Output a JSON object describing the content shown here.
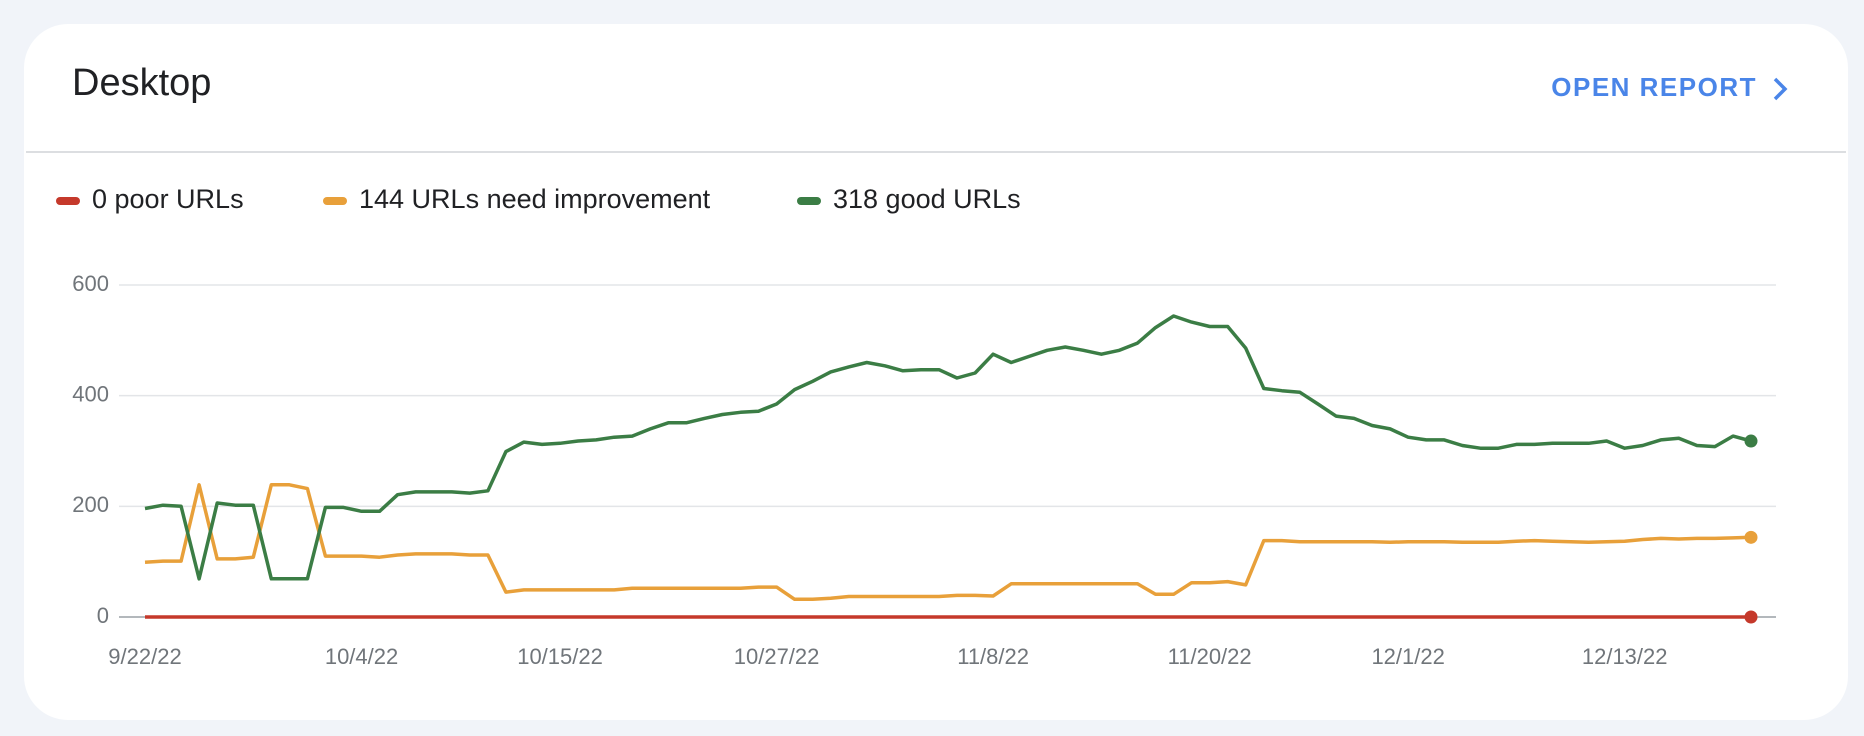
{
  "header": {
    "title": "Desktop",
    "action": "OPEN REPORT"
  },
  "chart_data": {
    "type": "line",
    "categories": [
      "9/22/22",
      null,
      null,
      null,
      null,
      null,
      null,
      null,
      null,
      null,
      null,
      null,
      "10/4/22",
      null,
      null,
      null,
      null,
      null,
      null,
      null,
      null,
      null,
      null,
      "10/15/22",
      null,
      null,
      null,
      null,
      null,
      null,
      null,
      null,
      null,
      null,
      null,
      "10/27/22",
      null,
      null,
      null,
      null,
      null,
      null,
      null,
      null,
      null,
      null,
      null,
      "11/8/22",
      null,
      null,
      null,
      null,
      null,
      null,
      null,
      null,
      null,
      null,
      null,
      "11/20/22",
      null,
      null,
      null,
      null,
      null,
      null,
      null,
      null,
      null,
      null,
      "12/1/22",
      null,
      null,
      null,
      null,
      null,
      null,
      null,
      null,
      null,
      null,
      null,
      "12/13/22",
      null,
      null,
      null,
      null,
      null,
      null,
      null
    ],
    "series": [
      {
        "name": "0 poor URLs",
        "color": "#c5392b",
        "values": [
          0,
          0,
          0,
          0,
          0,
          0,
          0,
          0,
          0,
          0,
          0,
          0,
          0,
          0,
          0,
          0,
          0,
          0,
          0,
          0,
          0,
          0,
          0,
          0,
          0,
          0,
          0,
          0,
          0,
          0,
          0,
          0,
          0,
          0,
          0,
          0,
          0,
          0,
          0,
          0,
          0,
          0,
          0,
          0,
          0,
          0,
          0,
          0,
          0,
          0,
          0,
          0,
          0,
          0,
          0,
          0,
          0,
          0,
          0,
          0,
          0,
          0,
          0,
          0,
          0,
          0,
          0,
          0,
          0,
          0,
          0,
          0,
          0,
          0,
          0,
          0,
          0,
          0,
          0,
          0,
          0,
          0,
          0,
          0,
          0,
          0,
          0,
          0,
          0,
          0
        ]
      },
      {
        "name": "144 URLs need improvement",
        "color": "#e8a03a",
        "values": [
          99,
          101,
          101,
          239,
          105,
          105,
          108,
          239,
          239,
          232,
          110,
          110,
          110,
          108,
          112,
          114,
          114,
          114,
          112,
          112,
          45,
          49,
          49,
          49,
          49,
          49,
          49,
          52,
          52,
          52,
          52,
          52,
          52,
          52,
          54,
          54,
          32,
          32,
          34,
          37,
          37,
          37,
          37,
          37,
          37,
          39,
          39,
          38,
          60,
          60,
          60,
          60,
          60,
          60,
          60,
          60,
          41,
          41,
          62,
          62,
          64,
          58,
          138,
          138,
          136,
          136,
          136,
          136,
          136,
          135,
          136,
          136,
          136,
          135,
          135,
          135,
          137,
          138,
          137,
          136,
          135,
          136,
          137,
          140,
          142,
          141,
          142,
          142,
          143,
          144
        ]
      },
      {
        "name": "318 good URLs",
        "color": "#3b7d45",
        "values": [
          196,
          202,
          200,
          69,
          206,
          202,
          202,
          69,
          69,
          69,
          198,
          198,
          191,
          191,
          221,
          226,
          226,
          226,
          224,
          228,
          299,
          316,
          312,
          314,
          318,
          320,
          325,
          327,
          340,
          351,
          351,
          359,
          366,
          370,
          372,
          385,
          411,
          426,
          443,
          452,
          460,
          454,
          445,
          447,
          447,
          432,
          441,
          475,
          460,
          471,
          482,
          488,
          482,
          475,
          482,
          495,
          523,
          544,
          533,
          525,
          525,
          486,
          413,
          409,
          406,
          385,
          363,
          359,
          346,
          340,
          325,
          320,
          320,
          310,
          305,
          305,
          312,
          312,
          314,
          314,
          314,
          318,
          305,
          310,
          320,
          323,
          310,
          308,
          327,
          318
        ]
      }
    ],
    "ylim": [
      0,
      600
    ],
    "yticks": [
      0,
      200,
      400,
      600
    ],
    "grid": true
  }
}
